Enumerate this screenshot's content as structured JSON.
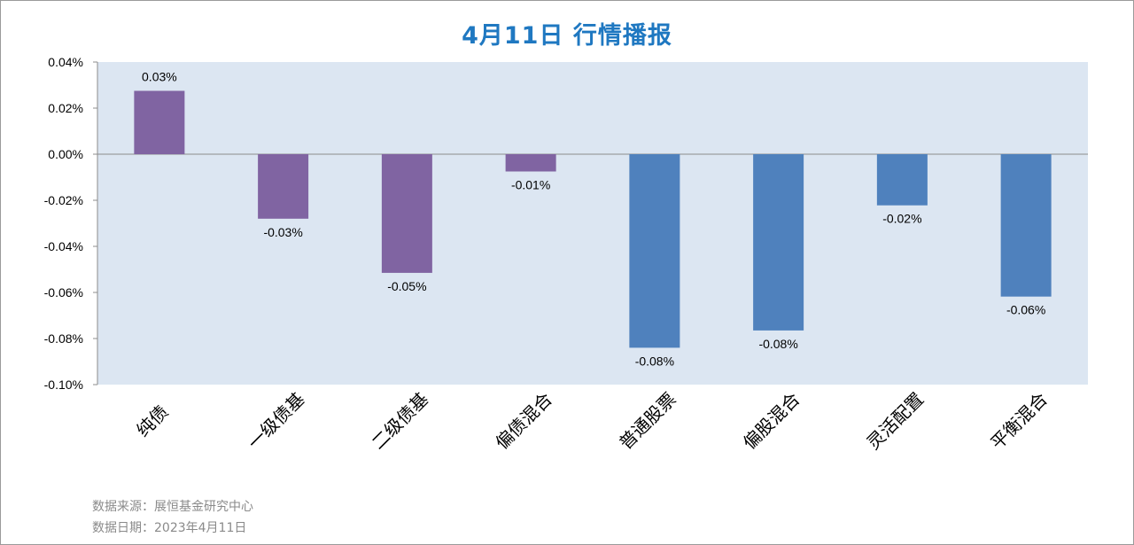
{
  "title": "4月11日  行情播报",
  "chart_data": {
    "type": "bar",
    "title": "4月11日  行情播报",
    "categories": [
      "纯债",
      "一级债基",
      "二级债基",
      "偏债混合",
      "普通股票",
      "偏股混合",
      "灵活配置",
      "平衡混合"
    ],
    "values": [
      0.0275,
      -0.028,
      -0.0515,
      -0.0075,
      -0.084,
      -0.0765,
      -0.0222,
      -0.0618
    ],
    "data_labels": [
      "0.03%",
      "-0.03%",
      "-0.05%",
      "-0.01%",
      "-0.08%",
      "-0.08%",
      "-0.02%",
      "-0.06%"
    ],
    "bar_colors": [
      "#8064a2",
      "#8064a2",
      "#8064a2",
      "#8064a2",
      "#4f81bd",
      "#4f81bd",
      "#4f81bd",
      "#4f81bd"
    ],
    "ylim": [
      -0.1,
      0.04
    ],
    "yticks": [
      0.04,
      0.02,
      0.0,
      -0.02,
      -0.04,
      -0.06,
      -0.08,
      -0.1
    ],
    "ytick_labels": [
      "0.04%",
      "0.02%",
      "0.00%",
      "-0.02%",
      "-0.04%",
      "-0.06%",
      "-0.08%",
      "-0.10%"
    ],
    "unit": "%",
    "xlabel": "",
    "ylabel": "",
    "grid": false,
    "plot_background": "#dce6f2"
  },
  "footer": {
    "source": "数据来源：展恒基金研究中心",
    "date": "数据日期：2023年4月11日"
  }
}
